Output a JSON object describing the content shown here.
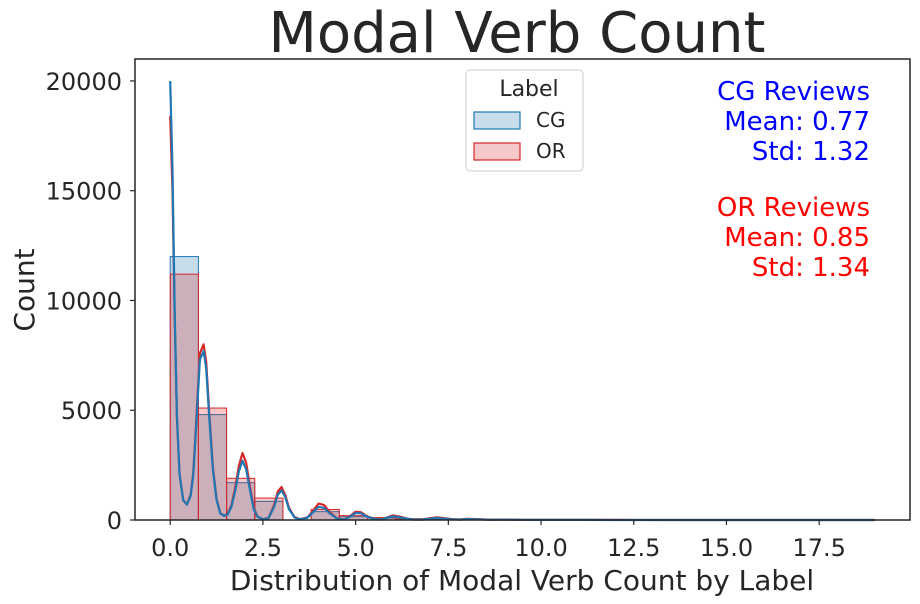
{
  "chart_data": {
    "type": "histogram",
    "title": "Modal Verb Count",
    "xlabel": "Distribution of Modal Verb Count by Label",
    "ylabel": "Count",
    "xlim": [
      -0.95,
      19.95
    ],
    "ylim": [
      0,
      21000
    ],
    "x_ticks": [
      0.0,
      2.5,
      5.0,
      7.5,
      10.0,
      12.5,
      15.0,
      17.5
    ],
    "x_tick_labels": [
      "0.0",
      "2.5",
      "5.0",
      "7.5",
      "10.0",
      "12.5",
      "15.0",
      "17.5"
    ],
    "y_ticks": [
      0,
      5000,
      10000,
      15000,
      20000
    ],
    "y_tick_labels": [
      "0",
      "5000",
      "10000",
      "15000",
      "20000"
    ],
    "grid": false,
    "legend": {
      "title": "Label",
      "placement": "top-center",
      "entries": [
        {
          "label": "CG",
          "color": "#1f77b4"
        },
        {
          "label": "OR",
          "color": "#d62728"
        }
      ]
    },
    "bin_edges": [
      0.0,
      0.76,
      1.52,
      2.28,
      3.04,
      3.8,
      4.56,
      5.32,
      6.08,
      6.84,
      7.6,
      8.36,
      9.12,
      9.88,
      10.64,
      11.4,
      12.16,
      12.92,
      13.68,
      14.44,
      15.2,
      15.96,
      16.72,
      17.48,
      18.24,
      19.0
    ],
    "series": [
      {
        "name": "CG",
        "color": "#1f77b4",
        "fill": "rgba(31,119,180,0.25)",
        "bin_counts": [
          12000,
          4800,
          1700,
          850,
          0,
          380,
          150,
          90,
          40,
          15,
          8,
          3,
          2,
          1,
          0,
          0,
          0,
          0,
          0,
          0,
          0,
          0,
          0,
          0,
          1
        ],
        "kde": {
          "x": [
            0.0,
            0.06,
            0.12,
            0.18,
            0.25,
            0.35,
            0.45,
            0.55,
            0.62,
            0.7,
            0.8,
            0.9,
            0.97,
            1.05,
            1.15,
            1.25,
            1.35,
            1.45,
            1.55,
            1.65,
            1.75,
            1.85,
            1.95,
            2.05,
            2.15,
            2.25,
            2.35,
            2.5,
            2.65,
            2.8,
            2.9,
            3.0,
            3.1,
            3.2,
            3.35,
            3.5,
            3.7,
            3.85,
            4.0,
            4.15,
            4.3,
            4.5,
            4.7,
            4.85,
            5.0,
            5.15,
            5.3,
            5.5,
            5.7,
            5.85,
            6.0,
            6.2,
            6.4,
            6.6,
            6.8,
            7.0,
            7.2,
            7.4,
            7.6,
            7.8,
            8.0,
            8.3,
            8.6,
            9.0,
            9.5,
            10.0,
            11.0,
            12.0,
            14.0,
            16.0,
            19.0
          ],
          "y": [
            20000,
            16000,
            9500,
            4800,
            2100,
            900,
            700,
            1100,
            2000,
            4300,
            7300,
            7700,
            6900,
            4700,
            2300,
            900,
            300,
            180,
            250,
            600,
            1300,
            2200,
            2700,
            2300,
            1350,
            500,
            150,
            30,
            80,
            600,
            1150,
            1350,
            1050,
            500,
            120,
            30,
            100,
            350,
            600,
            550,
            300,
            60,
            20,
            150,
            320,
            300,
            150,
            50,
            20,
            100,
            170,
            120,
            50,
            20,
            20,
            60,
            90,
            60,
            30,
            20,
            40,
            30,
            10,
            15,
            8,
            5,
            3,
            2,
            1,
            1,
            0
          ]
        }
      },
      {
        "name": "OR",
        "color": "#d62728",
        "fill": "rgba(214,39,40,0.25)",
        "bin_counts": [
          11200,
          5100,
          1900,
          1000,
          0,
          480,
          200,
          110,
          60,
          25,
          12,
          5,
          3,
          2,
          1,
          0,
          0,
          0,
          0,
          0,
          0,
          0,
          0,
          0,
          1
        ],
        "kde": {
          "x": [
            0.0,
            0.06,
            0.12,
            0.18,
            0.25,
            0.35,
            0.45,
            0.55,
            0.62,
            0.7,
            0.8,
            0.9,
            0.97,
            1.05,
            1.15,
            1.25,
            1.35,
            1.45,
            1.55,
            1.65,
            1.75,
            1.85,
            1.95,
            2.05,
            2.15,
            2.25,
            2.35,
            2.5,
            2.65,
            2.8,
            2.9,
            3.0,
            3.1,
            3.2,
            3.35,
            3.5,
            3.7,
            3.85,
            4.0,
            4.15,
            4.3,
            4.5,
            4.7,
            4.85,
            5.0,
            5.15,
            5.3,
            5.5,
            5.7,
            5.85,
            6.0,
            6.2,
            6.4,
            6.6,
            6.8,
            7.0,
            7.2,
            7.4,
            7.6,
            7.8,
            8.0,
            8.3,
            8.6,
            9.0,
            9.5,
            10.0,
            11.0,
            12.0,
            14.0,
            16.0,
            19.0
          ],
          "y": [
            18400,
            15000,
            9200,
            4700,
            2100,
            900,
            700,
            1150,
            2100,
            4500,
            7600,
            8000,
            7200,
            4900,
            2400,
            950,
            320,
            200,
            280,
            680,
            1450,
            2450,
            3050,
            2600,
            1500,
            560,
            170,
            35,
            90,
            680,
            1300,
            1500,
            1150,
            560,
            140,
            40,
            120,
            420,
            750,
            680,
            360,
            70,
            25,
            180,
            380,
            350,
            170,
            60,
            25,
            120,
            210,
            150,
            60,
            25,
            25,
            80,
            120,
            80,
            40,
            25,
            50,
            40,
            15,
            20,
            10,
            6,
            4,
            3,
            2,
            1,
            0
          ]
        }
      }
    ],
    "annotations": [
      {
        "lines": [
          "CG Reviews",
          "Mean: 0.77",
          "Std: 1.32"
        ],
        "color": "#0000ff"
      },
      {
        "lines": [
          "OR Reviews",
          "Mean: 0.85",
          "Std: 1.34"
        ],
        "color": "#ff0000"
      }
    ]
  }
}
